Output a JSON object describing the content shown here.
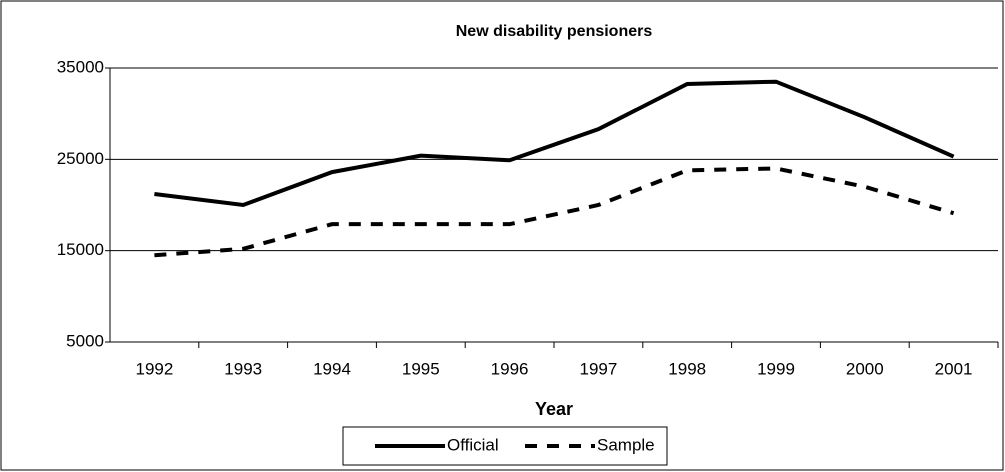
{
  "chart_data": {
    "type": "line",
    "title": "New disability pensioners",
    "x_label": "Year",
    "categories": [
      "1992",
      "1993",
      "1994",
      "1995",
      "1996",
      "1997",
      "1998",
      "1999",
      "2000",
      "2001"
    ],
    "series": [
      {
        "name": "Official",
        "color": "#000000",
        "dash": "solid",
        "values": [
          21200,
          20000,
          23600,
          25400,
          24900,
          28300,
          33250,
          33500,
          29600,
          25300
        ]
      },
      {
        "name": "Sample",
        "color": "#000000",
        "dash": "dashed",
        "values": [
          14500,
          15200,
          17900,
          17900,
          17900,
          20000,
          23800,
          24000,
          22000,
          19100
        ]
      }
    ],
    "ylim": [
      5000,
      35000
    ],
    "yticks": [
      5000,
      15000,
      25000,
      35000
    ],
    "grid": true,
    "legend": "bottom"
  }
}
